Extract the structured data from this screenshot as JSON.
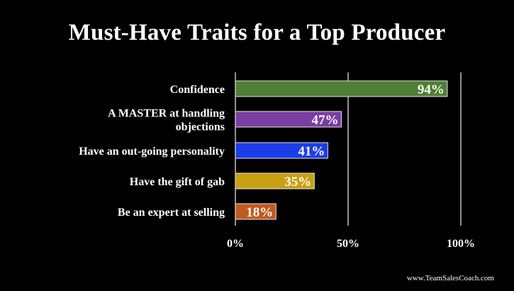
{
  "title": "Must-Have Traits for a Top Producer",
  "footer": "www.TeamSalesCoach.com",
  "chart_data": {
    "type": "bar",
    "orientation": "horizontal",
    "title": "Must-Have Traits for a Top Producer",
    "categories": [
      "Confidence",
      "A MASTER at handling objections",
      "Have an out-going personality",
      "Have the gift of gab",
      "Be an expert at selling"
    ],
    "category_lines": [
      [
        "Confidence"
      ],
      [
        "A MASTER at handling",
        "objections"
      ],
      [
        "Have an out-going personality"
      ],
      [
        "Have the gift of gab"
      ],
      [
        "Be an expert at selling"
      ]
    ],
    "values": [
      94,
      47,
      41,
      35,
      18
    ],
    "value_labels": [
      "94%",
      "47%",
      "41%",
      "35%",
      "18%"
    ],
    "bar_colors": [
      "#4f7f35",
      "#7a3da3",
      "#1c3dea",
      "#c9a012",
      "#c05a1f"
    ],
    "xlim": [
      0,
      100
    ],
    "xticks": [
      0,
      50,
      100
    ],
    "xtick_labels": [
      "0%",
      "50%",
      "100%"
    ],
    "grid": true,
    "gridline_color": "#bfbfbf",
    "background": "#000000"
  }
}
